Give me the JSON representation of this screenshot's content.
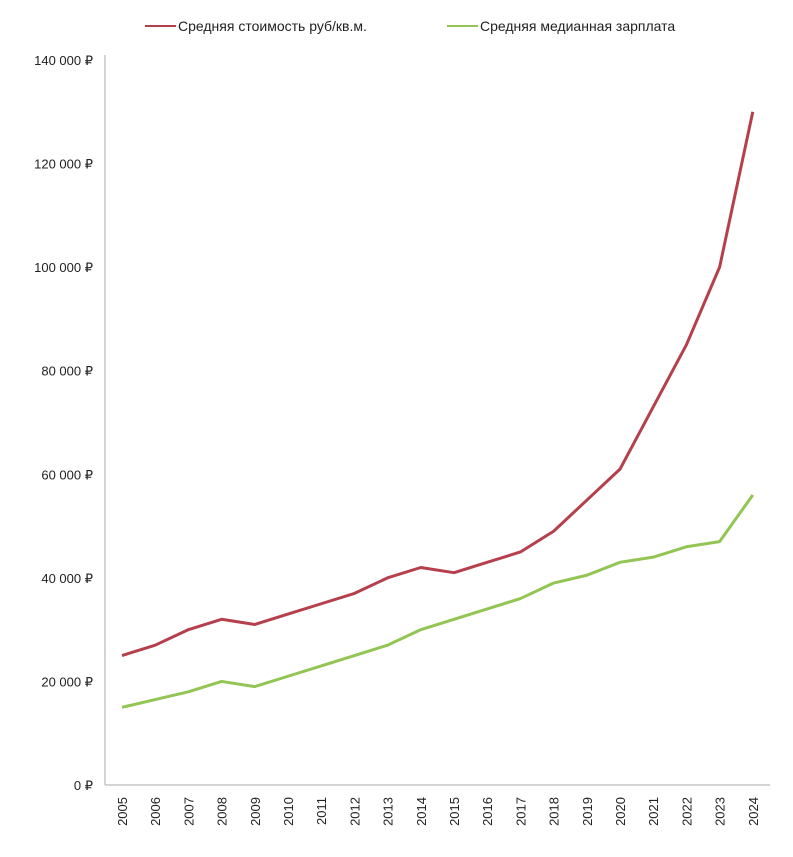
{
  "chart_data": {
    "type": "line",
    "title": "",
    "xlabel": "",
    "ylabel": "",
    "x": [
      "2005",
      "2006",
      "2007",
      "2008",
      "2009",
      "2010",
      "2011",
      "2012",
      "2013",
      "2014",
      "2015",
      "2016",
      "2017",
      "2018",
      "2019",
      "2020",
      "2021",
      "2022",
      "2023",
      "2024"
    ],
    "series": [
      {
        "name": "Средняя стоимость руб/кв.м.",
        "color": "#b5404c",
        "values": [
          25000,
          27000,
          30000,
          32000,
          31000,
          33000,
          35000,
          37000,
          40000,
          42000,
          41000,
          43000,
          45000,
          49000,
          55000,
          61000,
          73000,
          85000,
          100000,
          130000
        ]
      },
      {
        "name": "Средняя медианная зарплата",
        "color": "#92c553",
        "values": [
          15000,
          16500,
          18000,
          20000,
          19000,
          21000,
          23000,
          25000,
          27000,
          30000,
          32000,
          34000,
          36000,
          39000,
          40500,
          43000,
          44000,
          46000,
          47000,
          56000
        ]
      }
    ],
    "ylim": [
      0,
      140000
    ],
    "yticks": [
      0,
      20000,
      40000,
      60000,
      80000,
      100000,
      120000,
      140000
    ],
    "ytick_labels": [
      "0 ₽",
      "20 000 ₽",
      "40 000 ₽",
      "60 000 ₽",
      "80 000 ₽",
      "100 000 ₽",
      "120 000 ₽",
      "140 000 ₽"
    ],
    "grid": false,
    "legend": "top"
  }
}
